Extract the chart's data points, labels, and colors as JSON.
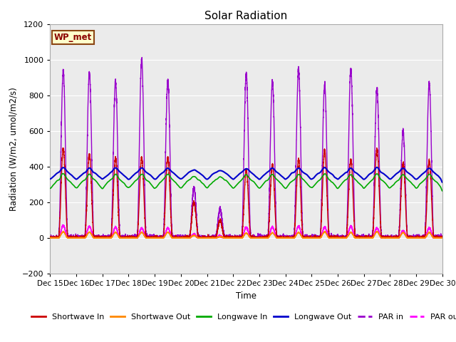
{
  "title": "Solar Radiation",
  "ylabel": "Radiation (W/m2, umol/m2/s)",
  "xlabel": "Time",
  "ylim": [
    -200,
    1200
  ],
  "xlim": [
    0,
    15
  ],
  "yticks": [
    -200,
    0,
    200,
    400,
    600,
    800,
    1000,
    1200
  ],
  "xtick_labels": [
    "Dec 15",
    "Dec 16",
    "Dec 17",
    "Dec 18",
    "Dec 19",
    "Dec 20",
    "Dec 21",
    "Dec 22",
    "Dec 23",
    "Dec 24",
    "Dec 25",
    "Dec 26",
    "Dec 27",
    "Dec 28",
    "Dec 29",
    "Dec 30"
  ],
  "bg_color": "#ebebeb",
  "grid_color": "#ffffff",
  "box_label": "WP_met",
  "box_facecolor": "#ffffcc",
  "box_edgecolor": "#8B4513",
  "series": {
    "shortwave_in": {
      "color": "#cc0000",
      "label": "Shortwave In",
      "lw": 1.0
    },
    "shortwave_out": {
      "color": "#ff8800",
      "label": "Shortwave Out",
      "lw": 1.0
    },
    "longwave_in": {
      "color": "#00aa00",
      "label": "Longwave In",
      "lw": 1.2
    },
    "longwave_out": {
      "color": "#0000cc",
      "label": "Longwave Out",
      "lw": 1.5
    },
    "par_in": {
      "color": "#9900cc",
      "label": "PAR in",
      "lw": 1.0
    },
    "par_out": {
      "color": "#ff00ff",
      "label": "PAR out",
      "lw": 1.0
    }
  },
  "figsize": [
    6.4,
    4.8
  ],
  "dpi": 100
}
